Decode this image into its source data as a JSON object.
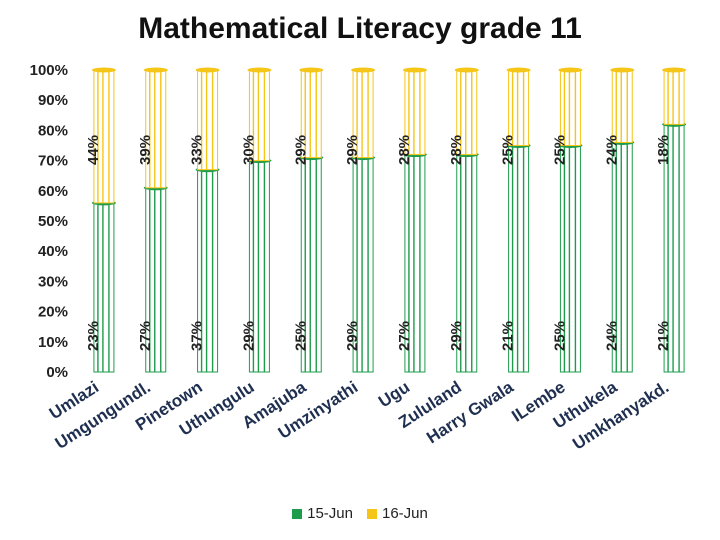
{
  "chart_data": {
    "type": "bar",
    "stacked": true,
    "percent_stacked": true,
    "title": "Mathematical Literacy grade 11",
    "categories": [
      "Umlazi",
      "Umgungundl.",
      "Pinetown",
      "Uthungulu",
      "Amajuba",
      "Umzinyathi",
      "Ugu",
      "Zululand",
      "Harry Gwala",
      "ILembe",
      "Uthukela",
      "Umkhanyakd."
    ],
    "series": [
      {
        "name": "15-Jun",
        "color": "#1e9c4c",
        "values": [
          23,
          27,
          37,
          29,
          25,
          29,
          27,
          29,
          21,
          25,
          24,
          21
        ]
      },
      {
        "name": "16-Jun",
        "color": "#f5c518",
        "values": [
          44,
          39,
          33,
          30,
          29,
          29,
          28,
          28,
          25,
          25,
          24,
          18
        ]
      }
    ],
    "ylim": [
      0,
      100
    ],
    "yticks": [
      "0%",
      "10%",
      "20%",
      "30%",
      "40%",
      "50%",
      "60%",
      "70%",
      "80%",
      "90%",
      "100%"
    ],
    "grid": false,
    "legend_position": "bottom"
  }
}
